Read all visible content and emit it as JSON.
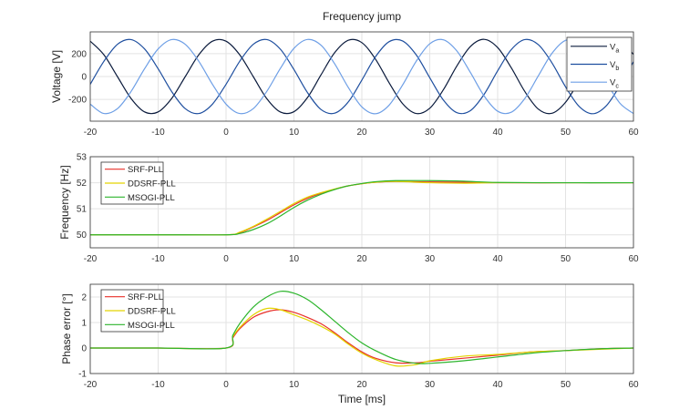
{
  "chart_data": [
    {
      "type": "line",
      "title": "Frequency jump",
      "xlabel": "",
      "ylabel": "Voltage [V]",
      "xlim": [
        -20,
        60
      ],
      "ylim": [
        -390,
        390
      ],
      "xticks": [
        -20,
        -10,
        0,
        10,
        20,
        30,
        40,
        50,
        60
      ],
      "yticks": [
        -200,
        0,
        200
      ],
      "grid": true,
      "legend": "top-right",
      "x": [
        -20,
        -18,
        -16,
        -14,
        -12,
        -10,
        -8,
        -6,
        -4,
        -2,
        0,
        2,
        4,
        6,
        8,
        10,
        12,
        14,
        16,
        18,
        20,
        22,
        24,
        26,
        28,
        30,
        32,
        34,
        36,
        38,
        40,
        42,
        44,
        46,
        48,
        50,
        52,
        54,
        56,
        58,
        60
      ],
      "series": [
        {
          "name": "Va",
          "label_main": "V",
          "label_sub": "a",
          "color": "#0b1b3d",
          "values": [
            309,
            191,
            0,
            -191,
            -309,
            -309,
            -191,
            0,
            191,
            309,
            309,
            191,
            0,
            -193,
            -310,
            -307,
            -183,
            16,
            209,
            317,
            296,
            153,
            -53,
            -237,
            -323,
            -277,
            -116,
            93,
            263,
            325,
            253,
            77,
            -131,
            -285,
            -321,
            -225,
            -37,
            167,
            302,
            313,
            194
          ]
        },
        {
          "name": "Vb",
          "label_main": "V",
          "label_sub": "b",
          "color": "#1f4f9f",
          "values": [
            -68,
            132,
            281,
            323,
            241,
            68,
            -132,
            -281,
            -323,
            -241,
            -68,
            132,
            281,
            323,
            239,
            61,
            -141,
            -289,
            -320,
            -222,
            -31,
            172,
            304,
            311,
            190,
            -10,
            -205,
            -316,
            -297,
            -156,
            50,
            235,
            323,
            278,
            119,
            -90,
            -261,
            -325,
            -255,
            -80,
            129
          ]
        },
        {
          "name": "Vc",
          "label_main": "V",
          "label_sub": "c",
          "color": "#6e9fe6",
          "values": [
            -241,
            -323,
            -281,
            -132,
            68,
            241,
            323,
            281,
            132,
            -68,
            -241,
            -323,
            -281,
            -130,
            71,
            246,
            324,
            273,
            111,
            -95,
            -265,
            -325,
            -251,
            -74,
            133,
            286,
            321,
            223,
            34,
            -169,
            -303,
            -312,
            -192,
            7,
            203,
            316,
            298,
            158,
            -47,
            -233,
            -323
          ]
        }
      ]
    },
    {
      "type": "line",
      "title": "",
      "xlabel": "",
      "ylabel": "Frequency [Hz]",
      "xlim": [
        -20,
        60
      ],
      "ylim": [
        49.5,
        53
      ],
      "xticks": [
        -20,
        -10,
        0,
        10,
        20,
        30,
        40,
        50,
        60
      ],
      "yticks": [
        50,
        51,
        52,
        53
      ],
      "grid": true,
      "legend": "top-left",
      "x": [
        -20,
        -10,
        0,
        2,
        4,
        6,
        8,
        10,
        12,
        14,
        16,
        18,
        20,
        22,
        25,
        30,
        35,
        40,
        50,
        60
      ],
      "series": [
        {
          "name": "SRF-PLL",
          "color": "#e8302a",
          "values": [
            50,
            50,
            50,
            50.08,
            50.3,
            50.55,
            50.85,
            51.15,
            51.4,
            51.6,
            51.75,
            51.88,
            51.96,
            52.02,
            52.05,
            52.03,
            52.02,
            52,
            52,
            52
          ]
        },
        {
          "name": "DDSRF-PLL",
          "color": "#e3d400",
          "values": [
            50,
            50,
            50,
            50.1,
            50.32,
            50.6,
            50.9,
            51.2,
            51.45,
            51.62,
            51.76,
            51.88,
            51.96,
            52.02,
            52.05,
            52.0,
            51.98,
            52,
            52,
            52
          ]
        },
        {
          "name": "MSOGI-PLL",
          "color": "#2db52d",
          "values": [
            50,
            50,
            50,
            50.05,
            50.2,
            50.42,
            50.72,
            51.05,
            51.33,
            51.56,
            51.74,
            51.88,
            51.97,
            52.04,
            52.08,
            52.08,
            52.06,
            52.01,
            52,
            52
          ]
        }
      ]
    },
    {
      "type": "line",
      "title": "",
      "xlabel": "Time [ms]",
      "ylabel": "Phase error [°]",
      "xlim": [
        -20,
        60
      ],
      "ylim": [
        -1,
        2.5
      ],
      "xticks": [
        -20,
        -10,
        0,
        10,
        20,
        30,
        40,
        50,
        60
      ],
      "yticks": [
        -1,
        0,
        1,
        2
      ],
      "grid": true,
      "legend": "top-left",
      "x": [
        -20,
        -10,
        0,
        1,
        2,
        4,
        6,
        8,
        10,
        12,
        14,
        16,
        18,
        20,
        22,
        25,
        28,
        30,
        35,
        40,
        45,
        50,
        55,
        60
      ],
      "series": [
        {
          "name": "SRF-PLL",
          "color": "#e8302a",
          "values": [
            0,
            0,
            0,
            0.4,
            0.75,
            1.2,
            1.42,
            1.5,
            1.4,
            1.2,
            0.95,
            0.6,
            0.2,
            -0.15,
            -0.4,
            -0.58,
            -0.58,
            -0.52,
            -0.4,
            -0.28,
            -0.15,
            -0.1,
            -0.03,
            0
          ]
        },
        {
          "name": "DDSRF-PLL",
          "color": "#e3d400",
          "values": [
            0,
            0,
            0,
            0.45,
            0.8,
            1.3,
            1.55,
            1.5,
            1.3,
            1.1,
            0.85,
            0.55,
            0.15,
            -0.2,
            -0.45,
            -0.7,
            -0.65,
            -0.5,
            -0.32,
            -0.25,
            -0.15,
            -0.1,
            -0.05,
            0
          ]
        },
        {
          "name": "MSOGI-PLL",
          "color": "#2db52d",
          "values": [
            0,
            0,
            0,
            0.5,
            0.95,
            1.6,
            2.0,
            2.22,
            2.15,
            1.9,
            1.5,
            1.05,
            0.6,
            0.2,
            -0.1,
            -0.45,
            -0.6,
            -0.6,
            -0.5,
            -0.35,
            -0.2,
            -0.1,
            -0.03,
            0
          ]
        }
      ]
    }
  ]
}
